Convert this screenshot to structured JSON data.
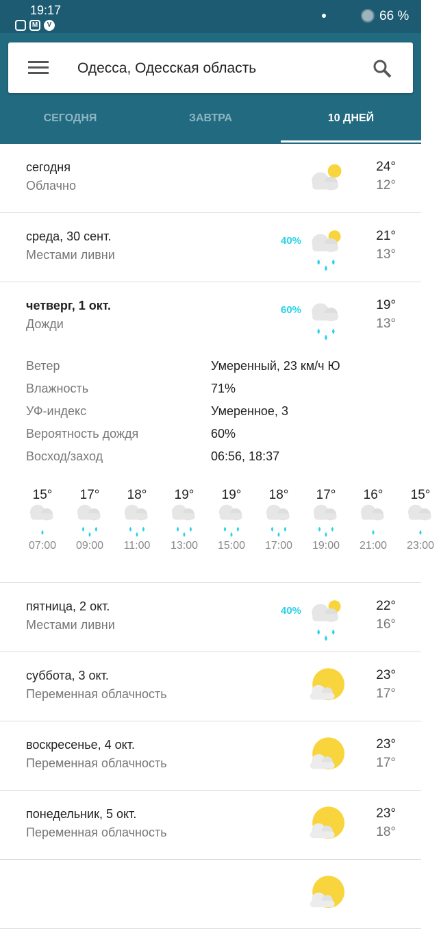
{
  "status_bar": {
    "time": "19:17",
    "battery": "66 %",
    "notification_icons": [
      "instagram-icon",
      "gmail-icon",
      "viber-icon"
    ]
  },
  "header": {
    "location": "Одесса, Одесская область"
  },
  "tabs": [
    {
      "label": "СЕГОДНЯ",
      "active": false
    },
    {
      "label": "ЗАВТРА",
      "active": false
    },
    {
      "label": "10 ДНЕЙ",
      "active": true
    }
  ],
  "colors": {
    "status_bar": "#1d5b72",
    "app_bar": "#226a80",
    "precip": "#27d3e8",
    "sun": "#f8d53c"
  },
  "days": [
    {
      "day": "сегодня",
      "condition": "Облачно",
      "high": "24°",
      "low": "12°",
      "precip": "",
      "icon": "cloudy-sun"
    },
    {
      "day": "среда, 30 сент.",
      "condition": "Местами ливни",
      "high": "21°",
      "low": "13°",
      "precip": "40%",
      "icon": "showers"
    },
    {
      "day": "четверг, 1 окт.",
      "condition": "Дожди",
      "high": "19°",
      "low": "13°",
      "precip": "60%",
      "icon": "rain",
      "expanded": true
    },
    {
      "day": "пятница, 2 окт.",
      "condition": "Местами ливни",
      "high": "22°",
      "low": "16°",
      "precip": "40%",
      "icon": "showers"
    },
    {
      "day": "суббота, 3 окт.",
      "condition": "Переменная облачность",
      "high": "23°",
      "low": "17°",
      "precip": "",
      "icon": "partly-cloudy"
    },
    {
      "day": "воскресенье, 4 окт.",
      "condition": "Переменная облачность",
      "high": "23°",
      "low": "17°",
      "precip": "",
      "icon": "partly-cloudy"
    },
    {
      "day": "понедельник, 5 окт.",
      "condition": "Переменная облачность",
      "high": "23°",
      "low": "18°",
      "precip": "",
      "icon": "partly-cloudy"
    },
    {
      "day": "",
      "condition": "",
      "high": "",
      "low": "",
      "precip": "",
      "icon": "partly-cloudy"
    }
  ],
  "details": [
    {
      "label": "Ветер",
      "value": "Умеренный, 23 км/ч Ю"
    },
    {
      "label": "Влажность",
      "value": "71%"
    },
    {
      "label": "УФ-индекс",
      "value": "Умеренное, 3"
    },
    {
      "label": "Вероятность дождя",
      "value": "60%"
    },
    {
      "label": "Восход/заход",
      "value": "06:56, 18:37"
    }
  ],
  "hourly": [
    {
      "temp": "15°",
      "time": "07:00",
      "drops": 1
    },
    {
      "temp": "17°",
      "time": "09:00",
      "drops": 3
    },
    {
      "temp": "18°",
      "time": "11:00",
      "drops": 3
    },
    {
      "temp": "19°",
      "time": "13:00",
      "drops": 3
    },
    {
      "temp": "19°",
      "time": "15:00",
      "drops": 3
    },
    {
      "temp": "18°",
      "time": "17:00",
      "drops": 3
    },
    {
      "temp": "17°",
      "time": "19:00",
      "drops": 3
    },
    {
      "temp": "16°",
      "time": "21:00",
      "drops": 1
    },
    {
      "temp": "15°",
      "time": "23:00",
      "drops": 1
    }
  ]
}
